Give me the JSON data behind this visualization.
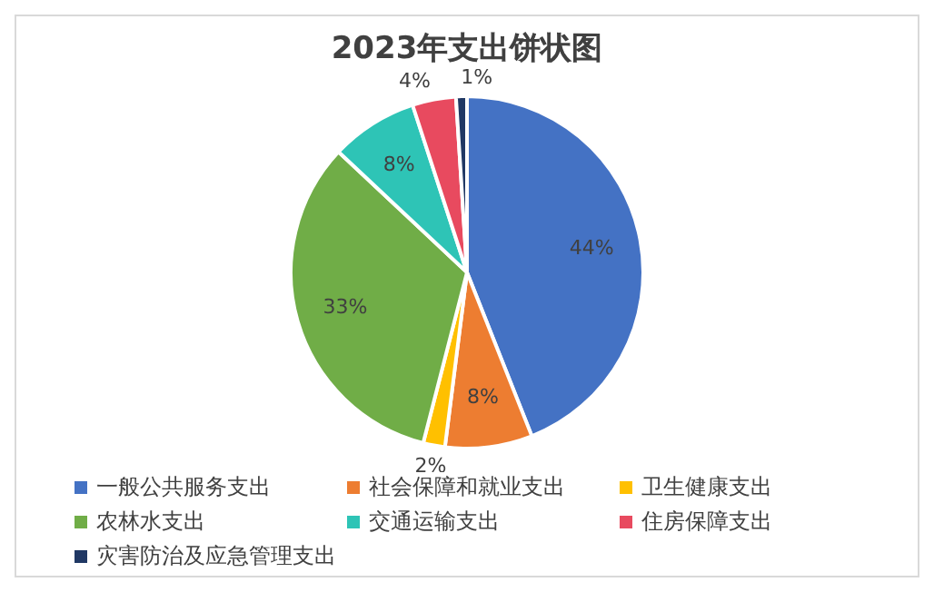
{
  "chart_data": {
    "type": "pie",
    "title": "2023年支出饼状图",
    "categories": [
      "一般公共服务支出",
      "社会保障和就业支出",
      "卫生健康支出",
      "农林水支出",
      "交通运输支出",
      "住房保障支出",
      "灾害防治及应急管理支出"
    ],
    "values": [
      44,
      8,
      2,
      33,
      8,
      4,
      1
    ],
    "colors": [
      "#4472c4",
      "#ed7d31",
      "#ffc000",
      "#70ad47",
      "#2ec4b6",
      "#e84a5f",
      "#203864"
    ],
    "value_labels": [
      "44%",
      "8%",
      "2%",
      "33%",
      "8%",
      "4%",
      "1%"
    ],
    "legend": "bottom"
  }
}
